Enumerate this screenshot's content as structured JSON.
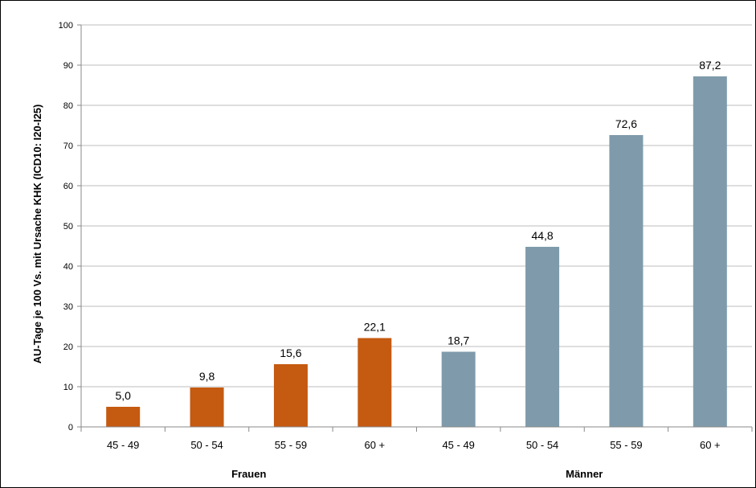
{
  "chart_data": {
    "type": "bar",
    "ylabel": "AU-Tage je 100 Vs. mit Ursache KHK (ICD10: I20-I25)",
    "ylim": [
      0,
      100
    ],
    "yticks": [
      0,
      10,
      20,
      30,
      40,
      50,
      60,
      70,
      80,
      90,
      100
    ],
    "grid": true,
    "categories": [
      "45 - 49",
      "50 - 54",
      "55 - 59",
      "60 +",
      "45 - 49",
      "50 - 54",
      "55 - 59",
      "60 +"
    ],
    "values": [
      5.0,
      9.8,
      15.6,
      22.1,
      18.7,
      44.8,
      72.6,
      87.2
    ],
    "data_labels": [
      "5,0",
      "9,8",
      "15,6",
      "22,1",
      "18,7",
      "44,8",
      "72,6",
      "87,2"
    ],
    "groups": [
      {
        "label": "Frauen",
        "indices": [
          0,
          1,
          2,
          3
        ],
        "color": "#C55A11"
      },
      {
        "label": "Männer",
        "indices": [
          4,
          5,
          6,
          7
        ],
        "color": "#7F9BAB"
      }
    ]
  }
}
